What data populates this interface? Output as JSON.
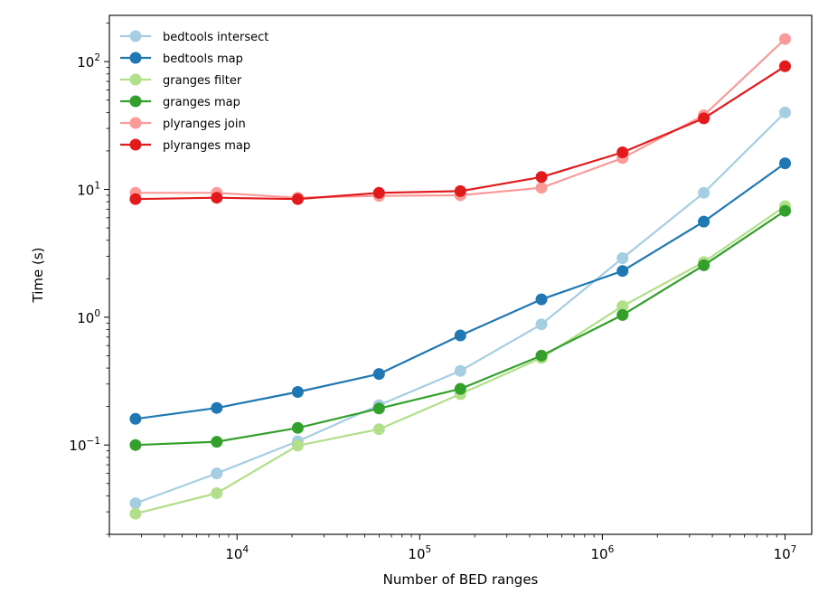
{
  "chart_data": {
    "type": "line",
    "title": "",
    "xlabel": "Number of BED ranges",
    "ylabel": "Time (s)",
    "xscale": "log",
    "yscale": "log",
    "xlim": [
      2000,
      14000000
    ],
    "ylim": [
      0.02,
      230
    ],
    "x_ticks": [
      {
        "value": 10000,
        "base": "10",
        "exp": "4"
      },
      {
        "value": 100000,
        "base": "10",
        "exp": "5"
      },
      {
        "value": 1000000,
        "base": "10",
        "exp": "6"
      },
      {
        "value": 10000000,
        "base": "10",
        "exp": "7"
      }
    ],
    "y_ticks": [
      {
        "value": 0.1,
        "base": "10",
        "exp": "−1"
      },
      {
        "value": 1,
        "base": "10",
        "exp": "0"
      },
      {
        "value": 10,
        "base": "10",
        "exp": "1"
      },
      {
        "value": 100,
        "base": "10",
        "exp": "2"
      }
    ],
    "grid": false,
    "legend_position": "top-left",
    "x": [
      2780,
      7740,
      21500,
      59900,
      167000,
      464000,
      1290000,
      3590000,
      10000000
    ],
    "series": [
      {
        "name": "bedtools intersect",
        "color": "#a6cee3",
        "values": [
          0.035,
          0.06,
          0.107,
          0.205,
          0.38,
          0.88,
          2.9,
          9.4,
          40
        ]
      },
      {
        "name": "bedtools map",
        "color": "#1f78b4",
        "values": [
          0.16,
          0.195,
          0.26,
          0.36,
          0.72,
          1.38,
          2.3,
          5.6,
          16
        ]
      },
      {
        "name": "granges filter",
        "color": "#b2df8a",
        "values": [
          0.029,
          0.042,
          0.099,
          0.133,
          0.25,
          0.48,
          1.22,
          2.7,
          7.4
        ]
      },
      {
        "name": "granges map",
        "color": "#33a02c",
        "values": [
          0.1,
          0.106,
          0.136,
          0.193,
          0.275,
          0.5,
          1.04,
          2.55,
          6.8
        ]
      },
      {
        "name": "plyranges join",
        "color": "#fb9a99",
        "values": [
          9.4,
          9.4,
          8.6,
          8.9,
          9.0,
          10.3,
          17.6,
          38,
          150
        ]
      },
      {
        "name": "plyranges map",
        "color": "#e31a1c",
        "values": [
          8.4,
          8.6,
          8.4,
          9.4,
          9.7,
          12.5,
          19.5,
          36,
          92
        ]
      }
    ]
  }
}
